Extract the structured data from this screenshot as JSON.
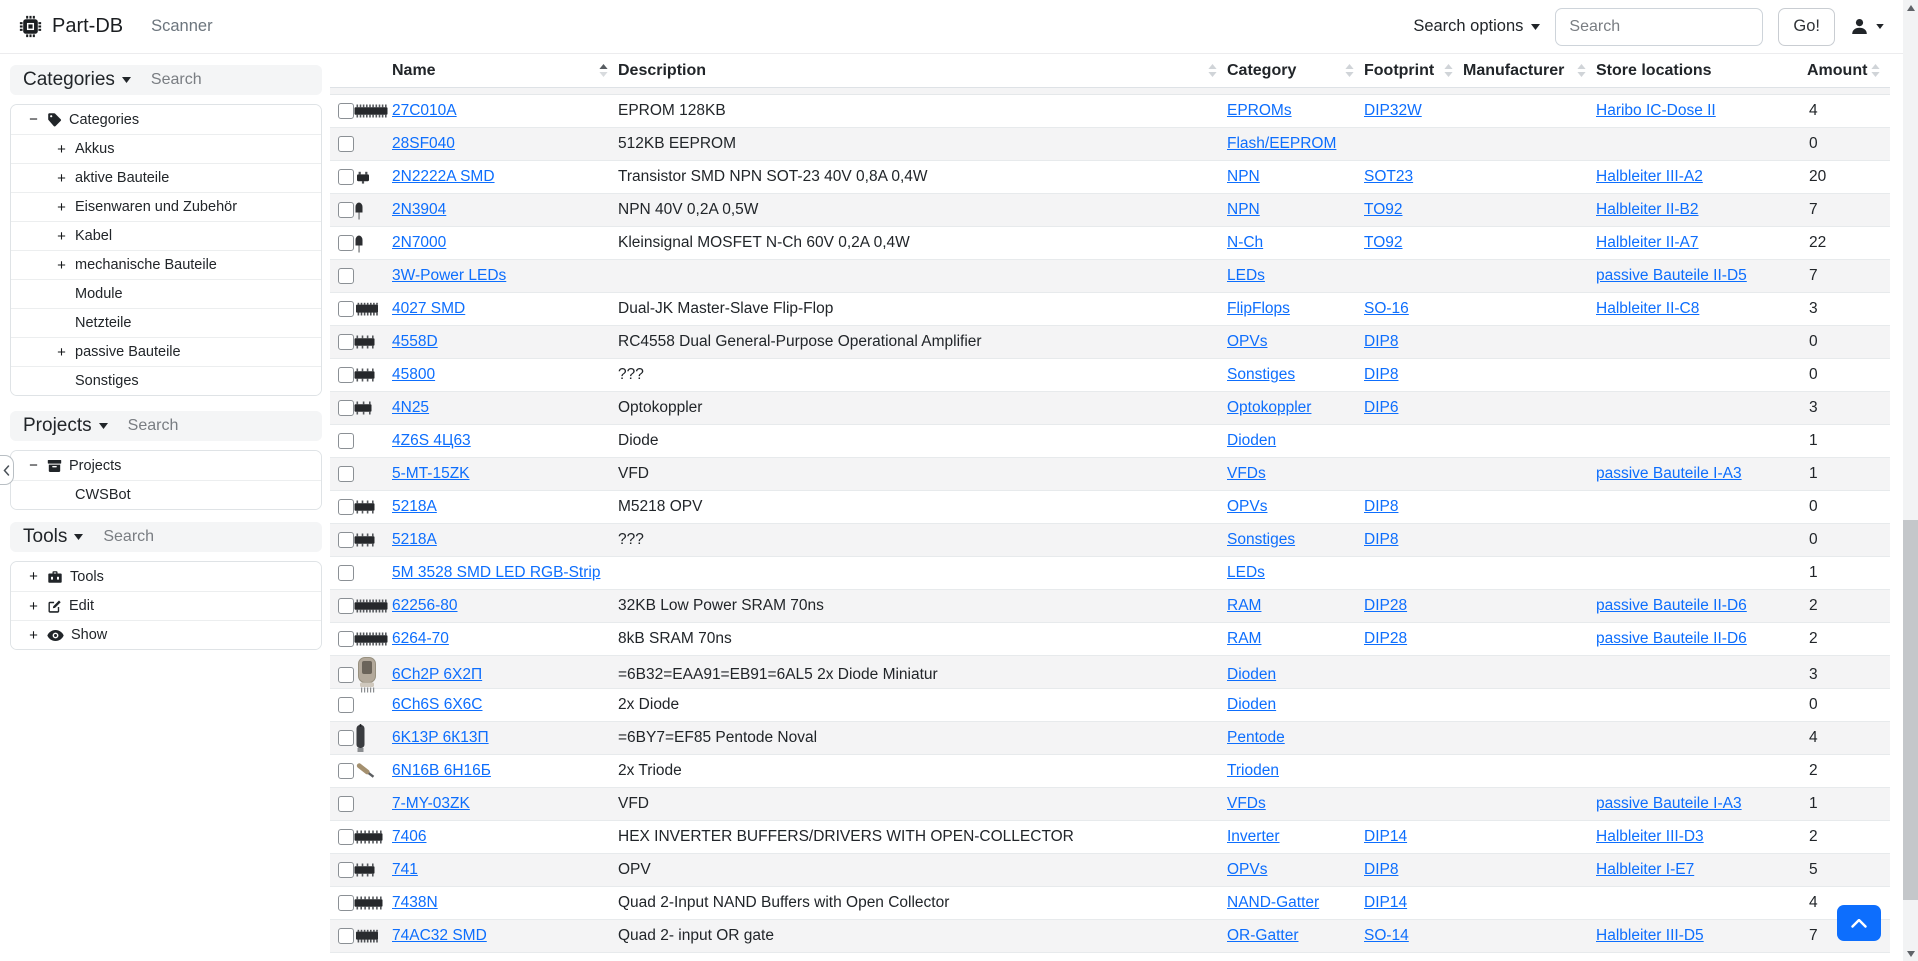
{
  "colors": {
    "link": "#0d6efd",
    "primary": "#0d6efd"
  },
  "navbar": {
    "brand": "Part-DB",
    "scanner": "Scanner",
    "search_options_label": "Search options",
    "search_placeholder": "Search",
    "go_label": "Go!"
  },
  "sidebar": {
    "panels": [
      {
        "key": "categories",
        "title": "Categories",
        "search_placeholder": "Search",
        "tree": [
          {
            "toggle": "minus",
            "icon": "tag-icon",
            "label": "Categories",
            "level": 0
          },
          {
            "toggle": "plus",
            "icon": null,
            "label": "Akkus",
            "level": 1
          },
          {
            "toggle": "plus",
            "icon": null,
            "label": "aktive Bauteile",
            "level": 1
          },
          {
            "toggle": "plus",
            "icon": null,
            "label": "Eisenwaren und Zubehör",
            "level": 1
          },
          {
            "toggle": "plus",
            "icon": null,
            "label": "Kabel",
            "level": 1
          },
          {
            "toggle": "plus",
            "icon": null,
            "label": "mechanische Bauteile",
            "level": 1
          },
          {
            "toggle": "none",
            "icon": null,
            "label": "Module",
            "level": 1
          },
          {
            "toggle": "none",
            "icon": null,
            "label": "Netzteile",
            "level": 1
          },
          {
            "toggle": "plus",
            "icon": null,
            "label": "passive Bauteile",
            "level": 1
          },
          {
            "toggle": "none",
            "icon": null,
            "label": "Sonstiges",
            "level": 1
          }
        ]
      },
      {
        "key": "projects",
        "title": "Projects",
        "search_placeholder": "Search",
        "tree": [
          {
            "toggle": "minus",
            "icon": "archive-icon",
            "label": "Projects",
            "level": 0
          },
          {
            "toggle": "none",
            "icon": null,
            "label": "CWSBot",
            "level": 1
          }
        ]
      },
      {
        "key": "tools",
        "title": "Tools",
        "search_placeholder": "Search",
        "tree": [
          {
            "toggle": "plus",
            "icon": "toolbox-icon",
            "label": "Tools",
            "level": 0
          },
          {
            "toggle": "plus",
            "icon": "edit-icon",
            "label": "Edit",
            "level": 0
          },
          {
            "toggle": "plus",
            "icon": "eye-icon",
            "label": "Show",
            "level": 0
          }
        ]
      }
    ]
  },
  "table": {
    "columns": [
      {
        "label": "Name",
        "sort": "asc"
      },
      {
        "label": "Description",
        "sort": "unsorted"
      },
      {
        "label": "Category",
        "sort": "unsorted"
      },
      {
        "label": "Footprint",
        "sort": "unsorted"
      },
      {
        "label": "Manufacturer",
        "sort": "unsorted"
      },
      {
        "label": "Store locations",
        "sort": "none"
      },
      {
        "label": "Amount",
        "sort": "unsorted"
      }
    ],
    "rows": [
      {
        "thumb": "dip-long",
        "name": "27C010A",
        "description": "EPROM 128KB",
        "category": "EPROMs",
        "footprint": "DIP32W",
        "manufacturer": "",
        "location": "Haribo IC-Dose II",
        "amount": "4"
      },
      {
        "thumb": null,
        "name": "28SF040",
        "description": "512KB EEPROM",
        "category": "Flash/EEPROM",
        "footprint": "",
        "manufacturer": "",
        "location": "",
        "amount": "0"
      },
      {
        "thumb": "sot23",
        "name": "2N2222A SMD",
        "description": "Transistor SMD NPN SOT-23 40V 0,8A 0,4W",
        "category": "NPN",
        "footprint": "SOT23",
        "manufacturer": "",
        "location": "Halbleiter III-A2",
        "amount": "20"
      },
      {
        "thumb": "to92",
        "name": "2N3904",
        "description": "NPN 40V 0,2A 0,5W",
        "category": "NPN",
        "footprint": "TO92",
        "manufacturer": "",
        "location": "Halbleiter II-B2",
        "amount": "7"
      },
      {
        "thumb": "to92",
        "name": "2N7000",
        "description": "Kleinsignal MOSFET N-Ch 60V 0,2A 0,4W",
        "category": "N-Ch",
        "footprint": "TO92",
        "manufacturer": "",
        "location": "Halbleiter II-A7",
        "amount": "22"
      },
      {
        "thumb": null,
        "name": "3W-Power LEDs",
        "description": "",
        "category": "LEDs",
        "footprint": "",
        "manufacturer": "",
        "location": "passive Bauteile II-D5",
        "amount": "7"
      },
      {
        "thumb": "soic",
        "name": "4027 SMD",
        "description": "Dual-JK Master-Slave Flip-Flop",
        "category": "FlipFlops",
        "footprint": "SO-16",
        "manufacturer": "",
        "location": "Halbleiter II-C8",
        "amount": "3"
      },
      {
        "thumb": "dip8",
        "name": "4558D",
        "description": "RC4558 Dual General-Purpose Operational Amplifier",
        "category": "OPVs",
        "footprint": "DIP8",
        "manufacturer": "",
        "location": "",
        "amount": "0"
      },
      {
        "thumb": "dip8",
        "name": "45800",
        "description": "???",
        "category": "Sonstiges",
        "footprint": "DIP8",
        "manufacturer": "",
        "location": "",
        "amount": "0"
      },
      {
        "thumb": "dip6",
        "name": "4N25",
        "description": "Optokoppler",
        "category": "Optokoppler",
        "footprint": "DIP6",
        "manufacturer": "",
        "location": "",
        "amount": "3"
      },
      {
        "thumb": null,
        "name": "4Z6S 4Ц63",
        "description": "Diode",
        "category": "Dioden",
        "footprint": "",
        "manufacturer": "",
        "location": "",
        "amount": "1"
      },
      {
        "thumb": null,
        "name": "5-MT-15ZK",
        "description": "VFD",
        "category": "VFDs",
        "footprint": "",
        "manufacturer": "",
        "location": "passive Bauteile I-A3",
        "amount": "1"
      },
      {
        "thumb": "dip8",
        "name": "5218A",
        "description": "M5218 OPV",
        "category": "OPVs",
        "footprint": "DIP8",
        "manufacturer": "",
        "location": "",
        "amount": "0"
      },
      {
        "thumb": "dip8",
        "name": "5218A",
        "description": "???",
        "category": "Sonstiges",
        "footprint": "DIP8",
        "manufacturer": "",
        "location": "",
        "amount": "0"
      },
      {
        "thumb": null,
        "name": "5M 3528 SMD LED RGB-Strip",
        "description": "",
        "category": "LEDs",
        "footprint": "",
        "manufacturer": "",
        "location": "",
        "amount": "1"
      },
      {
        "thumb": "dip-long",
        "name": "62256-80",
        "description": "32KB Low Power SRAM 70ns",
        "category": "RAM",
        "footprint": "DIP28",
        "manufacturer": "",
        "location": "passive Bauteile II-D6",
        "amount": "2"
      },
      {
        "thumb": "dip-long",
        "name": "6264-70",
        "description": "8kB SRAM 70ns",
        "category": "RAM",
        "footprint": "DIP28",
        "manufacturer": "",
        "location": "passive Bauteile II-D6",
        "amount": "2"
      },
      {
        "thumb": "tube-photo",
        "name": "6Ch2P 6Х2П",
        "description": "=6B32=EAA91=EB91=6AL5 2x Diode Miniatur",
        "category": "Dioden",
        "footprint": "",
        "manufacturer": "",
        "location": "",
        "amount": "3"
      },
      {
        "thumb": null,
        "name": "6Ch6S 6X6C",
        "description": "2x Diode",
        "category": "Dioden",
        "footprint": "",
        "manufacturer": "",
        "location": "",
        "amount": "0"
      },
      {
        "thumb": "tube-dark",
        "name": "6K13P 6К13П",
        "description": "=6BY7=EF85 Pentode Noval",
        "category": "Pentode",
        "footprint": "",
        "manufacturer": "",
        "location": "",
        "amount": "4"
      },
      {
        "thumb": "tube-diagonal",
        "name": "6N16B 6Н16Б",
        "description": "2x Triode",
        "category": "Trioden",
        "footprint": "",
        "manufacturer": "",
        "location": "",
        "amount": "2"
      },
      {
        "thumb": null,
        "name": "7-MY-03ZK",
        "description": "VFD",
        "category": "VFDs",
        "footprint": "",
        "manufacturer": "",
        "location": "passive Bauteile I-A3",
        "amount": "1"
      },
      {
        "thumb": "dip14",
        "name": "7406",
        "description": "HEX INVERTER BUFFERS/DRIVERS WITH OPEN-COLLECTOR",
        "category": "Inverter",
        "footprint": "DIP14",
        "manufacturer": "",
        "location": "Halbleiter III-D3",
        "amount": "2"
      },
      {
        "thumb": "dip8",
        "name": "741",
        "description": "OPV",
        "category": "OPVs",
        "footprint": "DIP8",
        "manufacturer": "",
        "location": "Halbleiter I-E7",
        "amount": "5"
      },
      {
        "thumb": "dip14",
        "name": "7438N",
        "description": "Quad 2-Input NAND Buffers with Open Collector",
        "category": "NAND-Gatter",
        "footprint": "DIP14",
        "manufacturer": "",
        "location": "",
        "amount": "4"
      },
      {
        "thumb": "soic",
        "name": "74AC32 SMD",
        "description": "Quad 2- input OR gate",
        "category": "OR-Gatter",
        "footprint": "SO-14",
        "manufacturer": "",
        "location": "Halbleiter III-D5",
        "amount": "7"
      }
    ]
  }
}
